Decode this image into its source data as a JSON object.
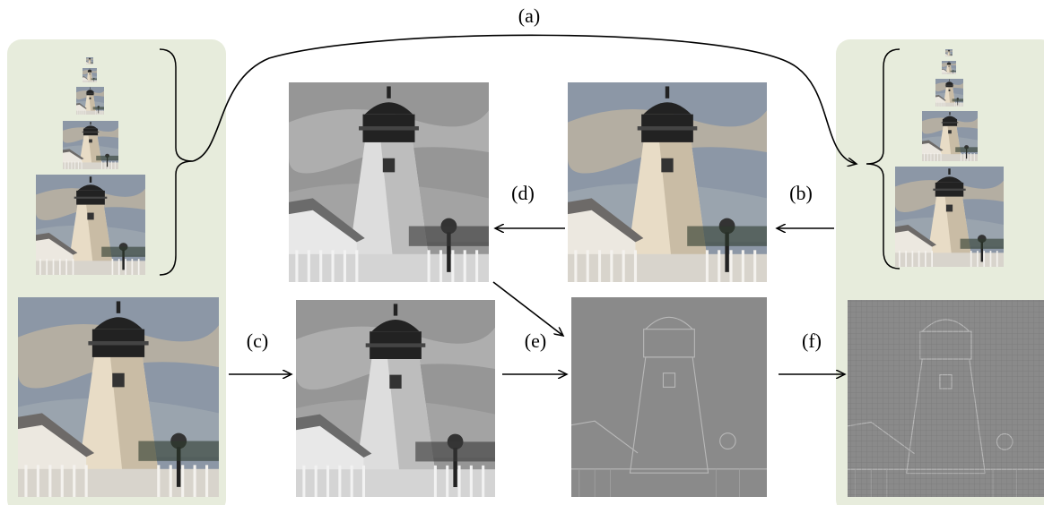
{
  "edges": [
    {
      "label": "(a)"
    },
    {
      "label": "(b)"
    },
    {
      "label": "(c)"
    },
    {
      "label": "(d)"
    },
    {
      "label": "(e)"
    },
    {
      "label": "(f)"
    }
  ]
}
